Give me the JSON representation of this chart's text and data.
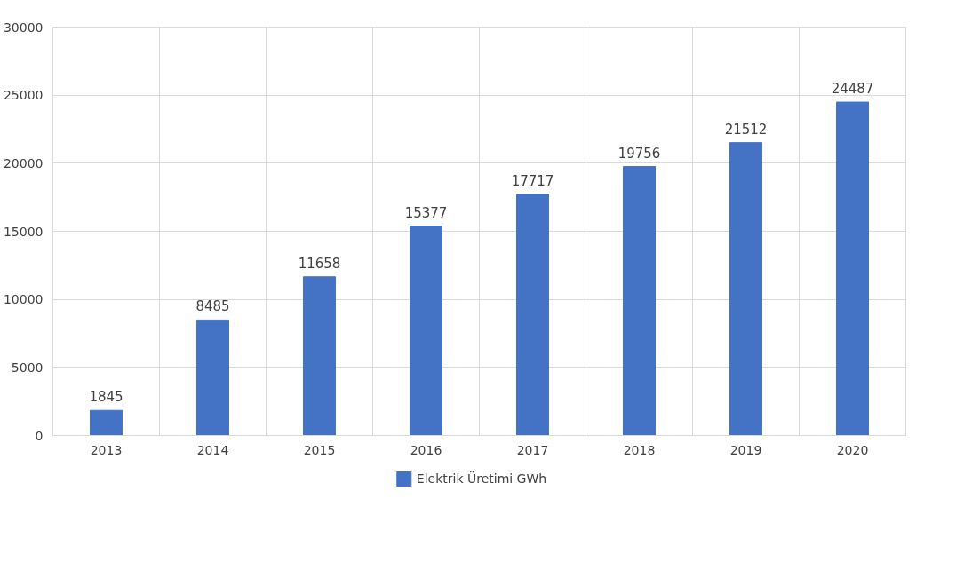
{
  "chart_data": {
    "type": "bar",
    "categories": [
      "2013",
      "2014",
      "2015",
      "2016",
      "2017",
      "2018",
      "2019",
      "2020"
    ],
    "series": [
      {
        "name": "Elektrik Üretimi GWh",
        "color": "#4472c4",
        "values": [
          1845,
          8485,
          11658,
          15377,
          17717,
          19756,
          21512,
          24487
        ]
      }
    ],
    "ylim": [
      0,
      30000
    ],
    "yticks": [
      0,
      5000,
      10000,
      15000,
      20000,
      25000,
      30000
    ],
    "grid": true,
    "legend": "bottom",
    "data_labels": true
  }
}
